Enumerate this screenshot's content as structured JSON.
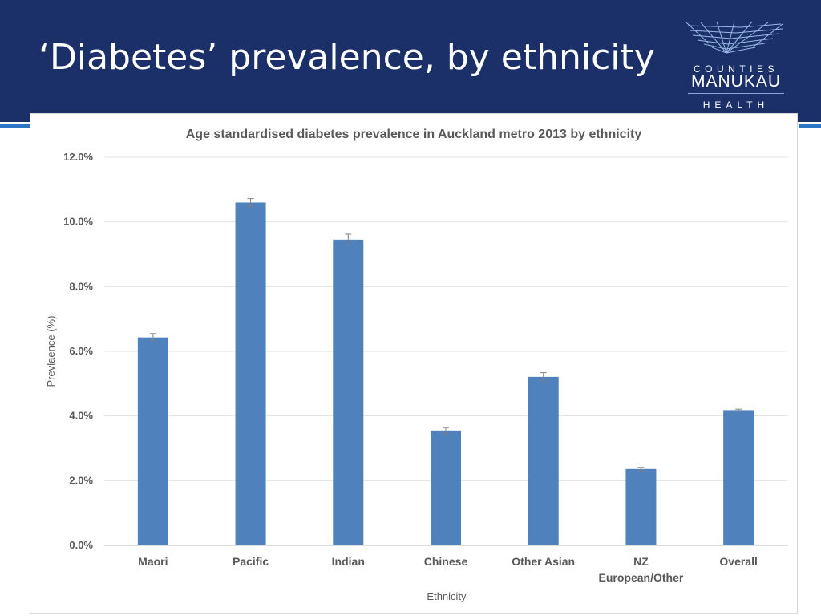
{
  "slide": {
    "title": "‘Diabetes’ prevalence, by ethnicity"
  },
  "logo": {
    "line1": "COUNTIES",
    "line2": "MANUKAU",
    "line3": "HEALTH"
  },
  "colors": {
    "header_bg": "#1b3068",
    "accent": "#2d74c2",
    "bar": "#4f81bd"
  },
  "chart_data": {
    "type": "bar",
    "title": "Age standardised diabetes prevalence in Auckland metro 2013 by ethnicity",
    "xlabel": "Ethnicity",
    "ylabel": "Prevlaence (%)",
    "ylim": [
      0,
      12
    ],
    "yticks": [
      "0.0%",
      "2.0%",
      "4.0%",
      "6.0%",
      "8.0%",
      "10.0%",
      "12.0%"
    ],
    "grid": true,
    "categories": [
      "Maori",
      "Pacific",
      "Indian",
      "Chinese",
      "Other Asian",
      "NZ European/Other",
      "Overall"
    ],
    "category_lines": [
      [
        "Maori"
      ],
      [
        "Pacific"
      ],
      [
        "Indian"
      ],
      [
        "Chinese"
      ],
      [
        "Other Asian"
      ],
      [
        "NZ",
        "European/Other"
      ],
      [
        "Overall"
      ]
    ],
    "values": [
      6.43,
      10.6,
      9.45,
      3.55,
      5.21,
      2.36,
      4.18
    ],
    "error_low": [
      6.32,
      10.48,
      9.28,
      3.45,
      5.08,
      2.31,
      4.15
    ],
    "error_high": [
      6.55,
      10.72,
      9.62,
      3.65,
      5.34,
      2.41,
      4.21
    ]
  }
}
